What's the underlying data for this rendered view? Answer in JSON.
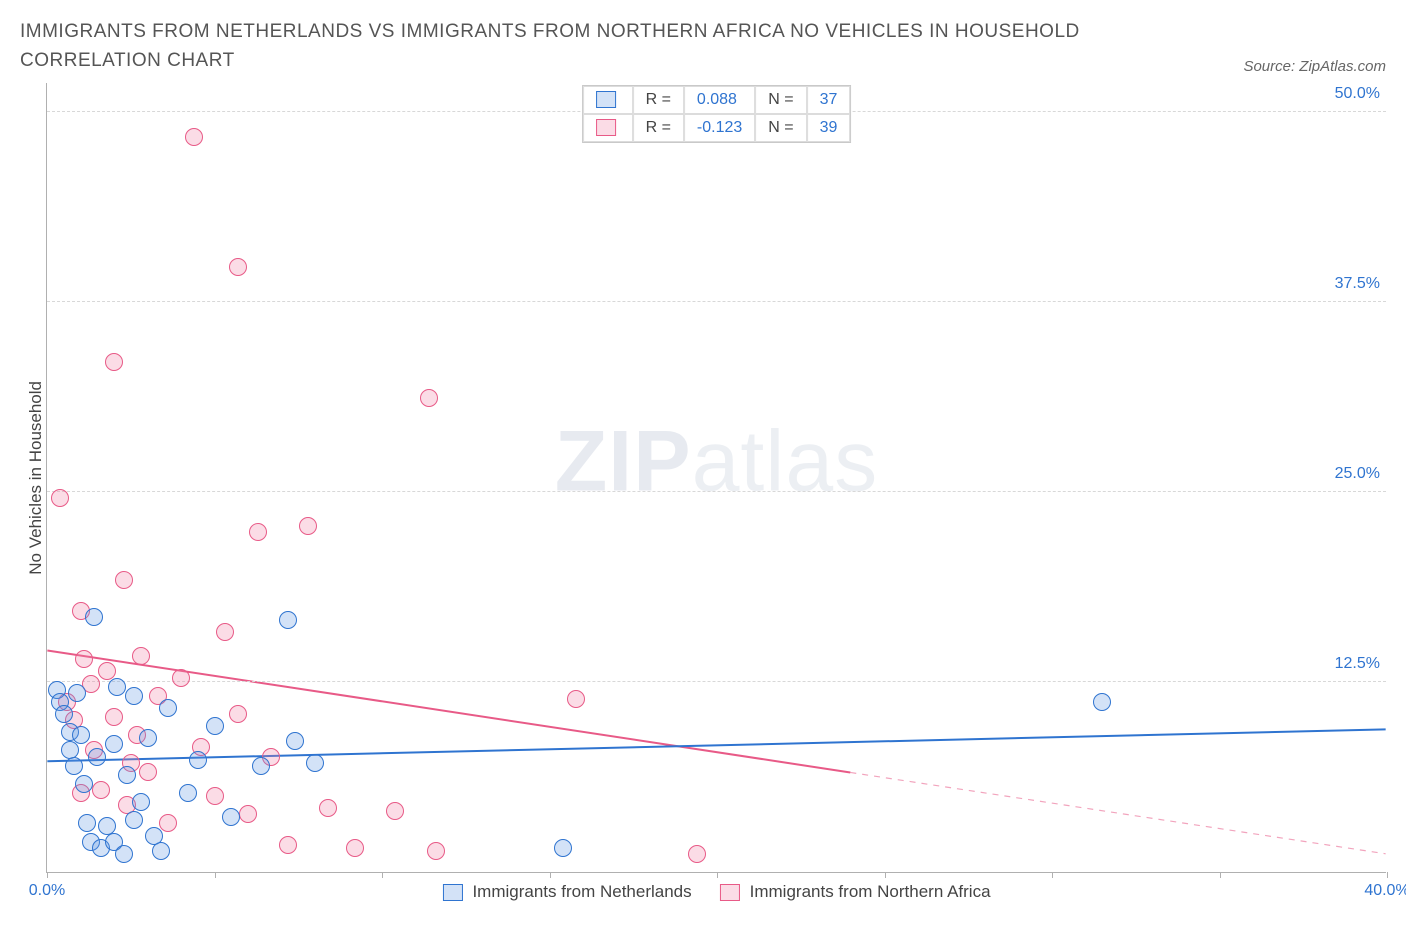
{
  "title": "IMMIGRANTS FROM NETHERLANDS VS IMMIGRANTS FROM NORTHERN AFRICA NO VEHICLES IN HOUSEHOLD CORRELATION CHART",
  "source": "Source: ZipAtlas.com",
  "y_axis": {
    "label": "No Vehicles in Household"
  },
  "chart": {
    "type": "scatter",
    "xlim": [
      0,
      40
    ],
    "ylim": [
      0,
      52
    ],
    "x_ticks": [
      0,
      5,
      10,
      15,
      20,
      25,
      30,
      35,
      40
    ],
    "x_tick_labels": {
      "0": "0.0%",
      "40": "40.0%"
    },
    "y_ticks": [
      12.5,
      25,
      37.5,
      50
    ],
    "y_tick_labels": [
      "12.5%",
      "25.0%",
      "37.5%",
      "50.0%"
    ],
    "background_color": "#ffffff",
    "grid_color": "#d8d8d8",
    "tick_color_y": "#2f74d0",
    "tick_color_x": "#2f74d0",
    "marker_radius": 9,
    "marker_border_width": 1.2,
    "marker_fill_opacity": 0.28
  },
  "series": {
    "netherlands": {
      "label": "Immigrants from Netherlands",
      "color": "#2f74d0",
      "fill": "rgba(96,150,225,0.28)",
      "R": "0.088",
      "N": "37",
      "trend": {
        "x1": 0,
        "y1": 7.3,
        "x2": 40,
        "y2": 9.4,
        "dashed_from_x": 40
      },
      "points": [
        [
          0.3,
          12.0
        ],
        [
          0.4,
          11.2
        ],
        [
          0.5,
          10.4
        ],
        [
          0.7,
          9.2
        ],
        [
          0.7,
          8.0
        ],
        [
          0.8,
          7.0
        ],
        [
          0.9,
          11.8
        ],
        [
          1.0,
          9.0
        ],
        [
          1.1,
          5.8
        ],
        [
          1.2,
          3.2
        ],
        [
          1.3,
          2.0
        ],
        [
          1.4,
          16.8
        ],
        [
          1.5,
          7.6
        ],
        [
          1.6,
          1.6
        ],
        [
          1.8,
          3.0
        ],
        [
          2.0,
          2.0
        ],
        [
          2.0,
          8.4
        ],
        [
          2.1,
          12.2
        ],
        [
          2.3,
          1.2
        ],
        [
          2.6,
          3.4
        ],
        [
          2.6,
          11.6
        ],
        [
          2.8,
          4.6
        ],
        [
          3.0,
          8.8
        ],
        [
          3.2,
          2.4
        ],
        [
          3.4,
          1.4
        ],
        [
          3.6,
          10.8
        ],
        [
          4.2,
          5.2
        ],
        [
          4.5,
          7.4
        ],
        [
          5.0,
          9.6
        ],
        [
          5.5,
          3.6
        ],
        [
          6.4,
          7.0
        ],
        [
          7.2,
          16.6
        ],
        [
          7.4,
          8.6
        ],
        [
          8.0,
          7.2
        ],
        [
          15.4,
          1.6
        ],
        [
          31.5,
          11.2
        ],
        [
          2.4,
          6.4
        ]
      ]
    },
    "northern_africa": {
      "label": "Immigrants from Northern Africa",
      "color": "#e85a87",
      "fill": "rgba(240,130,165,0.28)",
      "R": "-0.123",
      "N": "39",
      "trend": {
        "x1": 0,
        "y1": 14.6,
        "x2": 40,
        "y2": 1.2,
        "dashed_from_x": 24
      },
      "points": [
        [
          0.4,
          24.6
        ],
        [
          0.6,
          11.2
        ],
        [
          0.8,
          10.0
        ],
        [
          1.0,
          17.2
        ],
        [
          1.1,
          14.0
        ],
        [
          1.3,
          12.4
        ],
        [
          1.4,
          8.0
        ],
        [
          1.6,
          5.4
        ],
        [
          1.8,
          13.2
        ],
        [
          2.0,
          33.6
        ],
        [
          2.0,
          10.2
        ],
        [
          2.3,
          19.2
        ],
        [
          2.4,
          4.4
        ],
        [
          2.7,
          9.0
        ],
        [
          2.8,
          14.2
        ],
        [
          3.0,
          6.6
        ],
        [
          3.3,
          11.6
        ],
        [
          3.6,
          3.2
        ],
        [
          4.0,
          12.8
        ],
        [
          4.4,
          48.4
        ],
        [
          4.6,
          8.2
        ],
        [
          5.0,
          5.0
        ],
        [
          5.3,
          15.8
        ],
        [
          5.7,
          10.4
        ],
        [
          5.7,
          39.8
        ],
        [
          6.0,
          3.8
        ],
        [
          6.3,
          22.4
        ],
        [
          6.7,
          7.6
        ],
        [
          7.2,
          1.8
        ],
        [
          7.8,
          22.8
        ],
        [
          8.4,
          4.2
        ],
        [
          9.2,
          1.6
        ],
        [
          10.4,
          4.0
        ],
        [
          11.4,
          31.2
        ],
        [
          11.6,
          1.4
        ],
        [
          15.8,
          11.4
        ],
        [
          19.4,
          1.2
        ],
        [
          1.0,
          5.2
        ],
        [
          2.5,
          7.2
        ]
      ]
    }
  },
  "legend_top": {
    "labels": {
      "R": "R =",
      "N": "N ="
    }
  },
  "watermark": {
    "bold": "ZIP",
    "light": "atlas"
  }
}
